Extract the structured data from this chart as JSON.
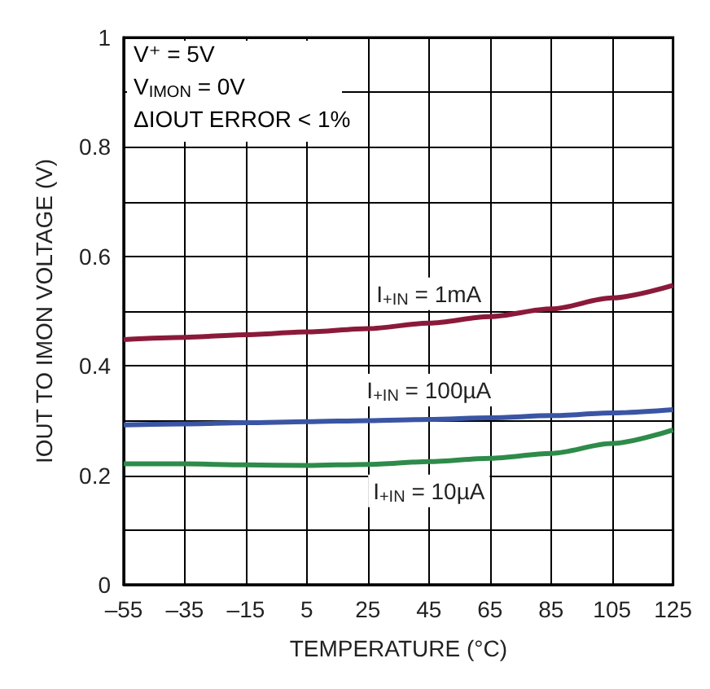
{
  "chart_data": {
    "type": "line",
    "xlabel": "TEMPERATURE (°C)",
    "ylabel": "IOUT TO IMON VOLTAGE (V)",
    "x": [
      -55,
      -35,
      -15,
      5,
      25,
      45,
      65,
      85,
      105,
      125
    ],
    "series": [
      {
        "name": "I$_{+IN}$ = 1mA",
        "color": "#8b1a3a",
        "values": [
          0.448,
          0.452,
          0.457,
          0.462,
          0.468,
          0.478,
          0.49,
          0.504,
          0.524,
          0.547
        ]
      },
      {
        "name": "I$_{+IN}$ = 100µA",
        "color": "#3a55a4",
        "values": [
          0.292,
          0.294,
          0.296,
          0.298,
          0.3,
          0.302,
          0.305,
          0.309,
          0.314,
          0.32
        ]
      },
      {
        "name": "I$_{+IN}$ = 10µA",
        "color": "#2e8b4a",
        "values": [
          0.221,
          0.221,
          0.219,
          0.218,
          0.22,
          0.225,
          0.231,
          0.24,
          0.258,
          0.283
        ]
      }
    ],
    "xlim": [
      -55,
      125
    ],
    "xticks": [
      {
        "value": -55,
        "label": "–55"
      },
      {
        "value": -35,
        "label": "–35"
      },
      {
        "value": -15,
        "label": "–15"
      },
      5,
      25,
      45,
      65,
      85,
      105,
      125
    ],
    "ylim": [
      0,
      1
    ],
    "yticks": [
      0,
      {
        "value": 0.1,
        "label": null
      },
      0.2,
      {
        "value": 0.3,
        "label": null
      },
      0.4,
      {
        "value": 0.5,
        "label": null
      },
      0.6,
      {
        "value": 0.7,
        "label": null
      },
      0.8,
      {
        "value": 0.9,
        "label": null
      },
      1.0
    ],
    "grid": true,
    "legend": false,
    "marker": "none",
    "line_style": "solid",
    "annotations": [
      "V⁺ = 5V",
      "V$_{IMON}$ = 0V",
      "ΔIOUT ERROR < 1%"
    ]
  }
}
